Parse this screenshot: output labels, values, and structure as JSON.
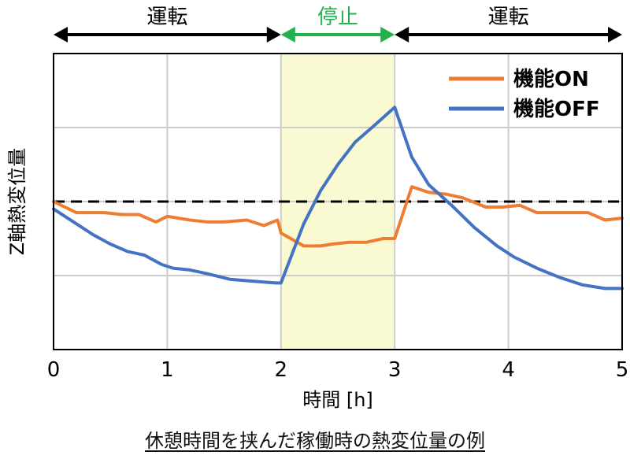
{
  "chart_data": {
    "type": "line",
    "xlabel": "時間 [h]",
    "ylabel": "Z軸熱変位量",
    "xlim": [
      0,
      5
    ],
    "ylim": [
      -4,
      4
    ],
    "x_ticks": [
      0,
      1,
      2,
      3,
      4,
      5
    ],
    "y_ticks_labeled": false,
    "grid": true,
    "legend_position": "top-right",
    "phases": [
      {
        "label": "運転",
        "start": 0,
        "end": 2,
        "color": "#000000"
      },
      {
        "label": "停止",
        "start": 2,
        "end": 3,
        "color": "#22b14c"
      },
      {
        "label": "運転",
        "start": 3,
        "end": 5,
        "color": "#000000"
      }
    ],
    "stop_band": {
      "start": 2,
      "end": 3,
      "color": "#fafad2"
    },
    "reference_line": {
      "y": 0,
      "style": "dashed",
      "color": "#000000"
    },
    "series": [
      {
        "name": "機能ON",
        "color": "#ed7d31",
        "x": [
          0,
          0.2,
          0.45,
          0.6,
          0.75,
          0.9,
          1.0,
          1.2,
          1.35,
          1.5,
          1.7,
          1.85,
          1.97,
          2.0,
          2.2,
          2.35,
          2.45,
          2.6,
          2.75,
          2.9,
          3.0,
          3.15,
          3.3,
          3.45,
          3.6,
          3.8,
          3.95,
          4.1,
          4.25,
          4.5,
          4.7,
          4.85,
          5.0
        ],
        "y": [
          0,
          -0.3,
          -0.3,
          -0.35,
          -0.35,
          -0.55,
          -0.4,
          -0.5,
          -0.55,
          -0.55,
          -0.5,
          -0.65,
          -0.5,
          -0.85,
          -1.2,
          -1.2,
          -1.15,
          -1.1,
          -1.1,
          -1.0,
          -1.0,
          0.4,
          0.25,
          0.2,
          0.1,
          -0.15,
          -0.15,
          -0.1,
          -0.3,
          -0.3,
          -0.3,
          -0.5,
          -0.45
        ]
      },
      {
        "name": "機能OFF",
        "color": "#4472c4",
        "x": [
          0,
          0.2,
          0.35,
          0.5,
          0.65,
          0.8,
          0.95,
          1.05,
          1.2,
          1.35,
          1.55,
          1.75,
          1.95,
          2.0,
          2.2,
          2.35,
          2.5,
          2.65,
          2.8,
          3.0,
          3.15,
          3.3,
          3.5,
          3.7,
          3.9,
          4.05,
          4.25,
          4.45,
          4.65,
          4.85,
          5.0
        ],
        "y": [
          -0.2,
          -0.6,
          -0.9,
          -1.15,
          -1.35,
          -1.45,
          -1.7,
          -1.8,
          -1.85,
          -1.95,
          -2.1,
          -2.15,
          -2.2,
          -2.2,
          -0.6,
          0.3,
          1.0,
          1.6,
          2.0,
          2.55,
          1.2,
          0.45,
          -0.1,
          -0.7,
          -1.2,
          -1.5,
          -1.8,
          -2.05,
          -2.25,
          -2.35,
          -2.35
        ]
      }
    ]
  },
  "caption": "休憩時間を挟んだ稼働時の熱変位量の例"
}
